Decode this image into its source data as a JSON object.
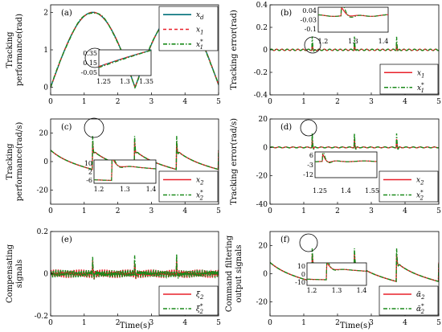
{
  "figure": {
    "xlabel": "Time(s)",
    "x_range": [
      0,
      5
    ],
    "x_ticks": [
      "0",
      "1",
      "2",
      "3",
      "4",
      "5"
    ]
  },
  "colors": {
    "series_a": "#00707a",
    "series_b": "#e8202a",
    "series_c": "#1a8a1a"
  },
  "chart_data": [
    {
      "type": "line",
      "panel": "(a)",
      "ylabel_lines": [
        "Tracking",
        "performance(rad)"
      ],
      "xlabel": "",
      "xlim": [
        0,
        5
      ],
      "ylim": [
        -0.2,
        2.2
      ],
      "y_ticks": [
        "0",
        "1",
        "2"
      ],
      "legend_position": "top-right",
      "series": [
        {
          "name": "x",
          "sub": "d",
          "sup": "",
          "style": "solid",
          "color": "#00707a",
          "signal": "sinabs"
        },
        {
          "name": "x",
          "sub": "1",
          "sup": "",
          "style": "dashed",
          "color": "#e8202a",
          "signal": "sinabs"
        },
        {
          "name": "x",
          "sub": "1",
          "sup": "*",
          "style": "dashdot",
          "color": "#1a8a1a",
          "signal": "sinabs"
        }
      ],
      "inset": {
        "x_ticks": [
          "1.25",
          "1.3",
          "1.35"
        ],
        "y_ticks": [
          "0.35",
          "0.15",
          "-0.05"
        ],
        "xlim": [
          1.22,
          1.38
        ],
        "ylim": [
          -0.1,
          0.42
        ]
      }
    },
    {
      "type": "line",
      "panel": "(b)",
      "ylabel_lines": [
        "Tracking error(rad)"
      ],
      "xlabel": "",
      "xlim": [
        0,
        5
      ],
      "ylim": [
        -0.4,
        0.4
      ],
      "y_ticks": [
        "0.4",
        "0.2",
        "0",
        "-0.2",
        "-0.4"
      ],
      "legend_position": "bottom-right",
      "series": [
        {
          "name": "x",
          "sub": "1",
          "sup": "",
          "style": "solid",
          "color": "#e8202a",
          "signal": "error"
        },
        {
          "name": "x",
          "sub": "1",
          "sup": "*",
          "style": "dashdot",
          "color": "#1a8a1a",
          "signal": "error"
        }
      ],
      "inset": {
        "x_ticks": [
          "1.2",
          "1.3",
          "1.4"
        ],
        "y_ticks": [
          "0.04",
          "-0.03",
          "-0.1"
        ],
        "xlim": [
          1.15,
          1.45
        ],
        "ylim": [
          -0.12,
          0.06
        ]
      }
    },
    {
      "type": "line",
      "panel": "(c)",
      "ylabel_lines": [
        "Tracking",
        "performance(rad/s)"
      ],
      "xlabel": "",
      "xlim": [
        0,
        5
      ],
      "ylim": [
        -30,
        30
      ],
      "y_ticks": [
        "20",
        "0",
        "-20"
      ],
      "legend_position": "bottom-right",
      "series": [
        {
          "name": "x",
          "sub": "2",
          "sup": "",
          "style": "solid",
          "color": "#e8202a",
          "signal": "sawtooth"
        },
        {
          "name": "x",
          "sub": "2",
          "sup": "*",
          "style": "dashdot",
          "color": "#1a8a1a",
          "signal": "sawtooth"
        }
      ],
      "inset": {
        "x_ticks": [
          "1.2",
          "1.3",
          "1.4"
        ],
        "y_ticks": [
          "10",
          "2",
          "-6"
        ],
        "xlim": [
          1.17,
          1.45
        ],
        "ylim": [
          -8,
          12
        ]
      }
    },
    {
      "type": "line",
      "panel": "(d)",
      "ylabel_lines": [
        "Tracking error(rad/s)"
      ],
      "xlabel": "",
      "xlim": [
        0,
        5
      ],
      "ylim": [
        -40,
        20
      ],
      "y_ticks": [
        "20",
        "0",
        "-20",
        "-40"
      ],
      "legend_position": "bottom-right",
      "series": [
        {
          "name": "x",
          "sub": "2",
          "sup": "",
          "style": "solid",
          "color": "#e8202a",
          "signal": "error2"
        },
        {
          "name": "x",
          "sub": "2",
          "sup": "*",
          "style": "dashdot",
          "color": "#1a8a1a",
          "signal": "error2"
        }
      ],
      "inset": {
        "x_ticks": [
          "1.25",
          "1.4",
          "1.55"
        ],
        "y_ticks": [
          "6",
          "-3",
          "-12"
        ],
        "xlim": [
          1.2,
          1.6
        ],
        "ylim": [
          -14,
          8
        ]
      }
    },
    {
      "type": "line",
      "panel": "(e)",
      "ylabel_lines": [
        "Compensating",
        "signals"
      ],
      "xlabel": "Time(s)",
      "xlim": [
        0,
        5
      ],
      "ylim": [
        -0.2,
        0.2
      ],
      "y_ticks": [
        "0.2",
        "0",
        "-0.2"
      ],
      "legend_position": "bottom-right",
      "series": [
        {
          "name": "ξ",
          "sub": "2",
          "sup": "",
          "style": "solid",
          "color": "#e8202a",
          "signal": "noise"
        },
        {
          "name": "ξ",
          "sub": "2",
          "sup": "*",
          "style": "dashdot",
          "color": "#1a8a1a",
          "signal": "noise"
        }
      ]
    },
    {
      "type": "line",
      "panel": "(f)",
      "ylabel_lines": [
        "Command filtering",
        "output signals"
      ],
      "xlabel": "Time(s)",
      "xlim": [
        0,
        5
      ],
      "ylim": [
        -30,
        30
      ],
      "y_ticks": [
        "20",
        "0",
        "-20"
      ],
      "legend_position": "bottom-right",
      "series": [
        {
          "name": "ᾱ",
          "sub": "2",
          "sup": "",
          "style": "solid",
          "color": "#e8202a",
          "signal": "sawtooth"
        },
        {
          "name": "ᾱ",
          "sub": "2",
          "sup": "*",
          "style": "dashdot",
          "color": "#1a8a1a",
          "signal": "sawtooth"
        }
      ],
      "inset": {
        "x_ticks": [
          "1.2",
          "1.3",
          "1.4"
        ],
        "y_ticks": [
          "10",
          "0",
          "-10"
        ],
        "xlim": [
          1.15,
          1.45
        ],
        "ylim": [
          -12,
          14
        ]
      }
    }
  ]
}
